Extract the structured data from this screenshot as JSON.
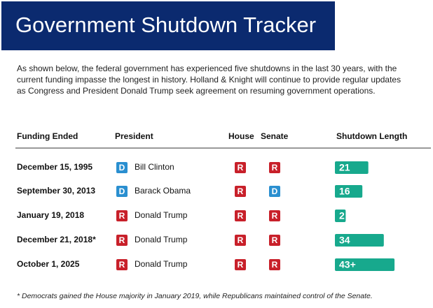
{
  "header": {
    "title": "Government Shutdown Tracker"
  },
  "intro": "As shown below, the federal government has experienced five shutdowns in the last 30 years, with the current funding impasse the longest in history. Holland & Knight will continue to provide regular updates as Congress and President Donald Trump seek agreement on resuming government operations.",
  "table": {
    "columns": [
      "Funding Ended",
      "President",
      "House",
      "Senate",
      "Shutdown Length"
    ],
    "rows": [
      {
        "funding_ended": "December 15, 1995",
        "president_party": "D",
        "president": "Bill Clinton",
        "house": "R",
        "senate": "R",
        "length": 21
      },
      {
        "funding_ended": "September 30, 2013",
        "president_party": "D",
        "president": "Barack Obama",
        "house": "R",
        "senate": "D",
        "length": 16
      },
      {
        "funding_ended": "January 19, 2018",
        "president_party": "R",
        "president": "Donald Trump",
        "house": "R",
        "senate": "R",
        "length": 2
      },
      {
        "funding_ended": "December 21, 2018*",
        "president_party": "R",
        "president": "Donald Trump",
        "house": "R",
        "senate": "R",
        "length": 34
      },
      {
        "funding_ended": "October 1, 2025",
        "president_party": "R",
        "president": "Donald Trump",
        "house": "R",
        "senate": "R",
        "length": {
          "value": 43,
          "label": "43+"
        }
      }
    ]
  },
  "footnote": "* Democrats gained the House majority in January 2019, while Republicans maintained control of the Senate."
}
